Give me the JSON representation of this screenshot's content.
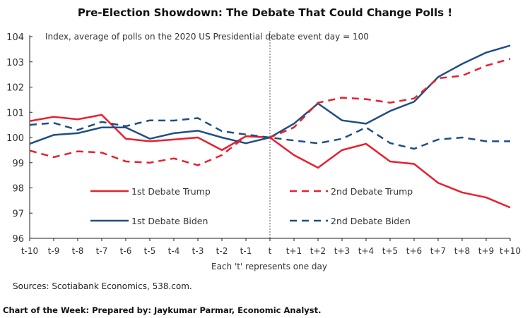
{
  "chart_data": {
    "type": "line",
    "title": "Pre-Election Showdown: The Debate That Could Change Polls !",
    "subtitle": "Index, average of polls on the 2020 US Presidential debate event day = 100",
    "xlabel": "Each 't' represents one day",
    "ylabel": "",
    "categories": [
      "t-10",
      "t-9",
      "t-8",
      "t-7",
      "t-6",
      "t-5",
      "t-4",
      "t-3",
      "t-2",
      "t-1",
      "t",
      "t+1",
      "t+2",
      "t+3",
      "t+4",
      "t+5",
      "t+6",
      "t+7",
      "t+8",
      "t+9",
      "t+10"
    ],
    "ylim": [
      96,
      104
    ],
    "yticks": [
      "96",
      "97",
      "98",
      "99",
      "100",
      "101",
      "102",
      "103",
      "104"
    ],
    "grid": false,
    "event_marker": "t",
    "series": [
      {
        "name": "1st Debate Trump",
        "color": "#e8202e",
        "dash": false,
        "values": [
          100.65,
          100.82,
          100.72,
          100.9,
          99.95,
          99.85,
          99.92,
          100.0,
          99.5,
          100.05,
          100,
          99.3,
          98.8,
          99.5,
          99.75,
          99.05,
          98.95,
          98.2,
          97.82,
          97.62,
          97.22
        ]
      },
      {
        "name": "1st Debate Biden",
        "color": "#1f4e84",
        "dash": false,
        "values": [
          99.75,
          100.1,
          100.17,
          100.4,
          100.4,
          99.95,
          100.17,
          100.27,
          100.0,
          99.77,
          100,
          100.55,
          101.35,
          100.68,
          100.55,
          101.05,
          101.42,
          102.4,
          102.92,
          103.37,
          103.65
        ]
      },
      {
        "name": "2nd Debate Trump",
        "color": "#e8202e",
        "dash": true,
        "values": [
          99.48,
          99.22,
          99.45,
          99.4,
          99.05,
          99.0,
          99.17,
          98.9,
          99.3,
          100.05,
          100,
          100.4,
          101.38,
          101.58,
          101.52,
          101.38,
          101.55,
          102.35,
          102.45,
          102.85,
          103.12
        ]
      },
      {
        "name": "2nd Debate Biden",
        "color": "#1f4e84",
        "dash": true,
        "values": [
          100.5,
          100.58,
          100.3,
          100.62,
          100.45,
          100.68,
          100.67,
          100.77,
          100.25,
          100.12,
          100,
          99.88,
          99.77,
          99.95,
          100.4,
          99.78,
          99.55,
          99.92,
          100.0,
          99.85,
          99.85
        ]
      }
    ]
  },
  "sources": "Sources: Scotiabank Economics, 538.com.",
  "footer": "Chart of the Week: Prepared by: Jaykumar Parmar, Economic Analyst."
}
